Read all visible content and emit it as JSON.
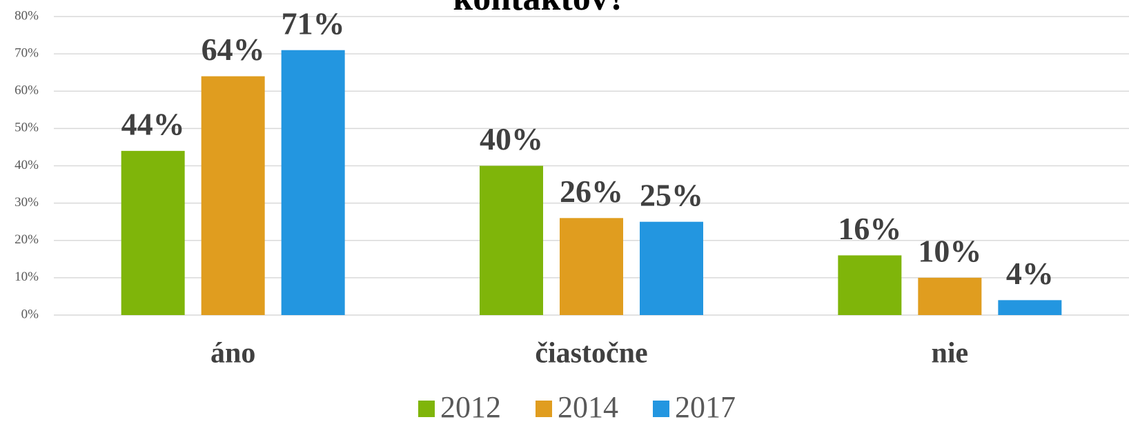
{
  "chart_data": {
    "type": "bar",
    "title": "kontaktov?",
    "categories": [
      "áno",
      "čiastočne",
      "nie"
    ],
    "series": [
      {
        "name": "2012",
        "color": "#7fb50a",
        "values": [
          44,
          40,
          16
        ],
        "value_labels": [
          "44%",
          "40%",
          "16%"
        ]
      },
      {
        "name": "2014",
        "color": "#e09d1f",
        "values": [
          64,
          26,
          10
        ],
        "value_labels": [
          "64%",
          "26%",
          "10%"
        ]
      },
      {
        "name": "2017",
        "color": "#2396e0",
        "values": [
          71,
          25,
          4
        ],
        "value_labels": [
          "71%",
          "25%",
          "4%"
        ]
      }
    ],
    "ylim": [
      0,
      80
    ],
    "yticks": [
      {
        "value": 0,
        "label": "0%"
      },
      {
        "value": 10,
        "label": "10%"
      },
      {
        "value": 20,
        "label": "20%"
      },
      {
        "value": 30,
        "label": "30%"
      },
      {
        "value": 40,
        "label": "40%"
      },
      {
        "value": 50,
        "label": "50%"
      },
      {
        "value": 60,
        "label": "60%"
      },
      {
        "value": 70,
        "label": "70%"
      },
      {
        "value": 80,
        "label": "80%"
      }
    ],
    "grid": true,
    "legend": "bottom"
  }
}
